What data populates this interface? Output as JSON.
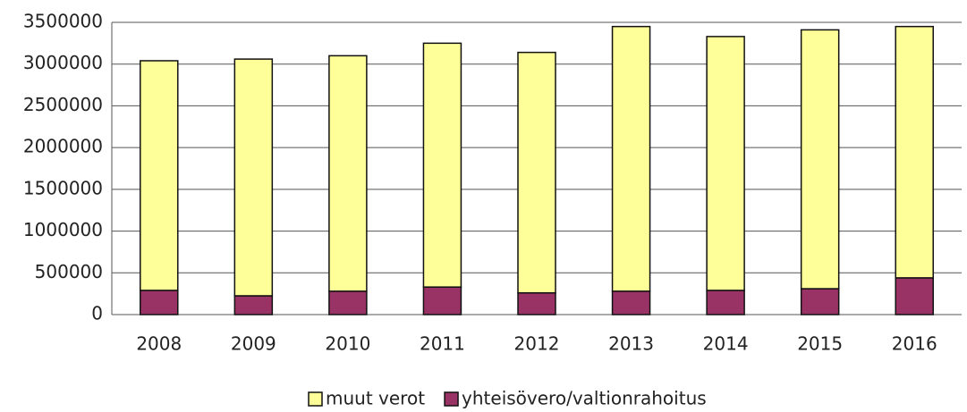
{
  "chart_data": {
    "type": "bar",
    "stacked": true,
    "categories": [
      "2008",
      "2009",
      "2010",
      "2011",
      "2012",
      "2013",
      "2014",
      "2015",
      "2016"
    ],
    "series": [
      {
        "name": "muut verot",
        "color": "#ffff99",
        "values": [
          2750000,
          2835000,
          2820000,
          2920000,
          2880000,
          3170000,
          3040000,
          3100000,
          3010000
        ]
      },
      {
        "name": "yhteisövero/valtionrahoitus",
        "color": "#993366",
        "values": [
          290000,
          225000,
          280000,
          330000,
          260000,
          280000,
          290000,
          310000,
          440000
        ]
      }
    ],
    "ylim": [
      0,
      3500000
    ],
    "yticks": [
      0,
      500000,
      1000000,
      1500000,
      2000000,
      2500000,
      3000000,
      3500000
    ],
    "grid": true,
    "legend": "bottom"
  }
}
